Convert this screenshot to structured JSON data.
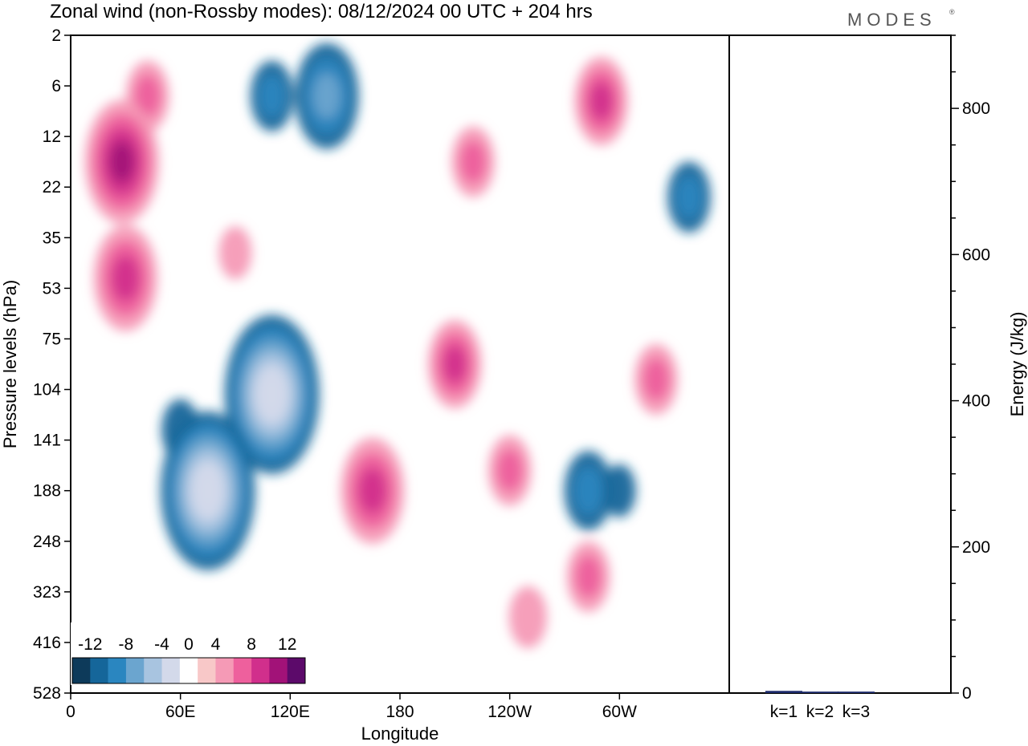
{
  "title": "Zonal wind (non-Rossby modes):  08/12/2024  00 UTC  + 204 hrs",
  "logo": "MODES",
  "logo_mark": "®",
  "colors": {
    "neg": [
      "#0d3a5a",
      "#15669a",
      "#2a86c0",
      "#6ba5cf",
      "#a8c4e0",
      "#d3d9ea"
    ],
    "zero": "#ffffff",
    "pos": [
      "#f8c8c8",
      "#f59ab6",
      "#ee609d",
      "#d12f8c",
      "#a21278",
      "#5c0a6a"
    ]
  },
  "chart_data": [
    {
      "type": "heatmap",
      "title": "Zonal wind (non-Rossby modes):  08/12/2024  00 UTC  + 204 hrs",
      "xlabel": "Longitude",
      "ylabel": "Pressure levels (hPa)",
      "x_ticks": [
        "0",
        "60E",
        "120E",
        "180",
        "120W",
        "60W"
      ],
      "y_ticks": [
        "2",
        "6",
        "12",
        "22",
        "35",
        "53",
        "75",
        "104",
        "141",
        "188",
        "248",
        "323",
        "416",
        "528"
      ],
      "colorbar_labels": [
        "-12",
        "-8",
        "-4",
        "0",
        "4",
        "8",
        "12"
      ],
      "colorbar_levels": [
        -14,
        -12,
        -10,
        -8,
        -6,
        -4,
        -2,
        2,
        4,
        6,
        8,
        10,
        12,
        14
      ],
      "features": [
        {
          "lon": 28,
          "level": 2.5,
          "value": 10
        },
        {
          "lon": 42,
          "level": 1.2,
          "value": 4
        },
        {
          "lon": 140,
          "level": 1.2,
          "value": -8
        },
        {
          "lon": 110,
          "level": 1.2,
          "value": -4
        },
        {
          "lon": 60,
          "level": 7.8,
          "value": -3
        },
        {
          "lon": 110,
          "level": 7.1,
          "value": -14
        },
        {
          "lon": 75,
          "level": 9.0,
          "value": -14
        },
        {
          "lon": 165,
          "level": 9.0,
          "value": 8
        },
        {
          "lon": 210,
          "level": 6.5,
          "value": 6
        },
        {
          "lon": 240,
          "level": 8.6,
          "value": 4
        },
        {
          "lon": 283,
          "level": 9.0,
          "value": -5
        },
        {
          "lon": 30,
          "level": 4.8,
          "value": 8
        },
        {
          "lon": 90,
          "level": 4.3,
          "value": 2
        },
        {
          "lon": 220,
          "level": 2.5,
          "value": 4
        },
        {
          "lon": 290,
          "level": 1.3,
          "value": 6
        },
        {
          "lon": 338,
          "level": 3.2,
          "value": -4
        },
        {
          "lon": 320,
          "level": 6.8,
          "value": 4
        },
        {
          "lon": 283,
          "level": 10.7,
          "value": 4
        },
        {
          "lon": 300,
          "level": 9.0,
          "value": -2
        },
        {
          "lon": 250,
          "level": 11.5,
          "value": 3
        }
      ]
    },
    {
      "type": "bar",
      "ylabel": "Energy (J/kg)",
      "categories": [
        "k=1",
        "k=2",
        "k=3"
      ],
      "values": [
        3,
        2,
        2
      ],
      "y_ticks": [
        "0",
        "200",
        "400",
        "600",
        "800"
      ],
      "ylim": [
        0,
        900
      ]
    }
  ]
}
